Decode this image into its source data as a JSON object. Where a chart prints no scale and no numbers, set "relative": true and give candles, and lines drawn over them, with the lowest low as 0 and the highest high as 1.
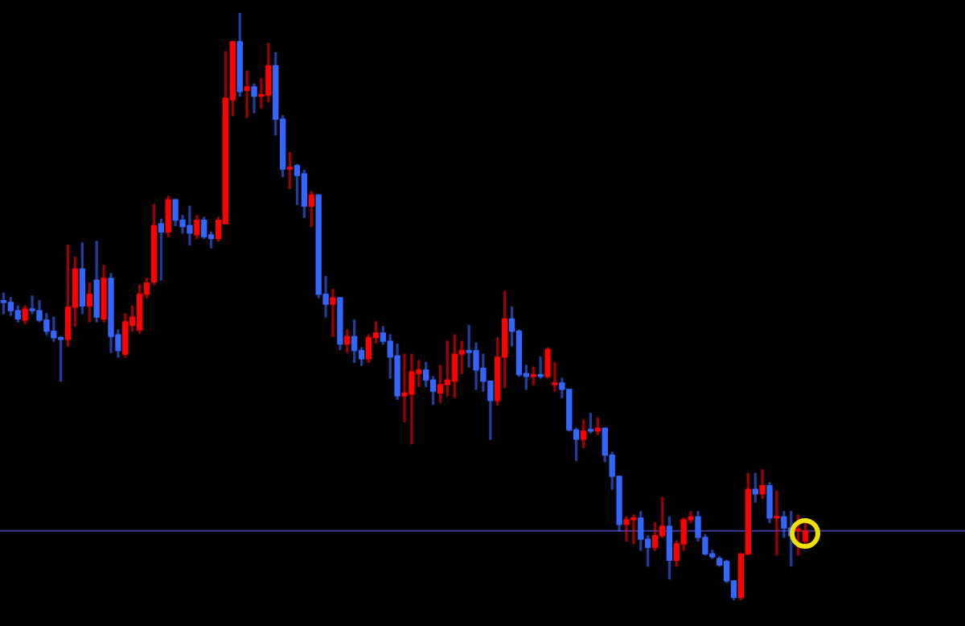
{
  "chart_data": {
    "type": "candlestick",
    "relative": true,
    "categories": [
      null,
      null,
      null,
      null,
      null,
      null,
      null,
      null,
      null,
      null,
      null,
      null,
      null,
      null,
      null,
      null,
      null,
      null,
      null,
      null,
      null,
      null,
      null,
      null,
      null,
      null,
      null,
      null,
      null,
      null,
      null,
      null,
      null,
      null,
      null,
      null,
      null,
      null,
      null,
      null,
      null,
      null,
      null,
      null,
      null,
      null,
      null,
      null,
      null,
      null,
      null,
      null,
      null,
      null,
      null,
      null,
      null,
      null,
      null,
      null,
      null,
      null,
      null,
      null,
      null,
      null,
      null,
      null,
      null,
      null,
      null,
      null,
      null,
      null,
      null,
      null,
      null,
      null,
      null,
      null,
      null,
      null,
      null,
      null,
      null,
      null,
      null,
      null,
      null,
      null,
      null,
      null,
      null,
      null,
      null,
      null,
      null,
      null,
      null,
      null,
      null,
      null,
      null,
      null,
      null,
      null,
      null,
      null,
      null,
      null,
      null,
      null,
      null
    ],
    "ohlc": [
      [
        0.51,
        0.523,
        0.488,
        0.507
      ],
      [
        0.507,
        0.515,
        0.485,
        0.493
      ],
      [
        0.493,
        0.501,
        0.474,
        0.479
      ],
      [
        0.477,
        0.501,
        0.471,
        0.496
      ],
      [
        0.496,
        0.518,
        0.488,
        0.493
      ],
      [
        0.493,
        0.51,
        0.474,
        0.477
      ],
      [
        0.477,
        0.488,
        0.452,
        0.458
      ],
      [
        0.458,
        0.482,
        0.441,
        0.447
      ],
      [
        0.447,
        0.449,
        0.373,
        0.444
      ],
      [
        0.444,
        0.605,
        0.433,
        0.499
      ],
      [
        0.499,
        0.584,
        0.466,
        0.564
      ],
      [
        0.564,
        0.608,
        0.488,
        0.501
      ],
      [
        0.501,
        0.54,
        0.474,
        0.521
      ],
      [
        0.545,
        0.611,
        0.474,
        0.482
      ],
      [
        0.479,
        0.57,
        0.474,
        0.548
      ],
      [
        0.548,
        0.556,
        0.422,
        0.449
      ],
      [
        0.452,
        0.46,
        0.414,
        0.425
      ],
      [
        0.419,
        0.488,
        0.414,
        0.474
      ],
      [
        0.468,
        0.501,
        0.458,
        0.482
      ],
      [
        0.46,
        0.537,
        0.455,
        0.521
      ],
      [
        0.521,
        0.548,
        0.515,
        0.54
      ],
      [
        0.542,
        0.674,
        0.537,
        0.638
      ],
      [
        0.641,
        0.649,
        0.545,
        0.627
      ],
      [
        0.627,
        0.688,
        0.619,
        0.682
      ],
      [
        0.682,
        0.682,
        0.638,
        0.647
      ],
      [
        0.647,
        0.655,
        0.625,
        0.636
      ],
      [
        0.638,
        0.671,
        0.605,
        0.625
      ],
      [
        0.622,
        0.655,
        0.616,
        0.647
      ],
      [
        0.647,
        0.652,
        0.616,
        0.619
      ],
      [
        0.622,
        0.627,
        0.6,
        0.616
      ],
      [
        0.616,
        0.652,
        0.611,
        0.647
      ],
      [
        0.641,
        0.934,
        0.641,
        0.855
      ],
      [
        0.852,
        0.951,
        0.825,
        0.951
      ],
      [
        0.951,
        1,
        0.858,
        0.866
      ],
      [
        0.868,
        0.901,
        0.822,
        0.874
      ],
      [
        0.874,
        0.879,
        0.83,
        0.858
      ],
      [
        0.858,
        0.888,
        0.838,
        0.86
      ],
      [
        0.86,
        0.948,
        0.849,
        0.91
      ],
      [
        0.91,
        0.932,
        0.792,
        0.819
      ],
      [
        0.819,
        0.825,
        0.721,
        0.734
      ],
      [
        0.734,
        0.762,
        0.701,
        0.737
      ],
      [
        0.74,
        0.742,
        0.674,
        0.723
      ],
      [
        0.726,
        0.732,
        0.652,
        0.671
      ],
      [
        0.671,
        0.696,
        0.636,
        0.69
      ],
      [
        0.69,
        0.69,
        0.515,
        0.521
      ],
      [
        0.521,
        0.551,
        0.482,
        0.504
      ],
      [
        0.504,
        0.529,
        0.449,
        0.515
      ],
      [
        0.515,
        0.515,
        0.427,
        0.436
      ],
      [
        0.436,
        0.46,
        0.422,
        0.449
      ],
      [
        0.449,
        0.477,
        0.405,
        0.425
      ],
      [
        0.425,
        0.43,
        0.4,
        0.411
      ],
      [
        0.411,
        0.452,
        0.405,
        0.447
      ],
      [
        0.447,
        0.474,
        0.438,
        0.455
      ],
      [
        0.455,
        0.466,
        0.436,
        0.441
      ],
      [
        0.441,
        0.452,
        0.378,
        0.414
      ],
      [
        0.416,
        0.436,
        0.342,
        0.348
      ],
      [
        0.348,
        0.419,
        0.304,
        0.353
      ],
      [
        0.351,
        0.419,
        0.266,
        0.389
      ],
      [
        0.386,
        0.408,
        0.364,
        0.392
      ],
      [
        0.392,
        0.405,
        0.364,
        0.375
      ],
      [
        0.375,
        0.381,
        0.334,
        0.356
      ],
      [
        0.353,
        0.4,
        0.337,
        0.367
      ],
      [
        0.367,
        0.441,
        0.348,
        0.375
      ],
      [
        0.373,
        0.452,
        0.345,
        0.419
      ],
      [
        0.419,
        0.441,
        0.386,
        0.425
      ],
      [
        0.425,
        0.468,
        0.397,
        0.422
      ],
      [
        0.425,
        0.438,
        0.359,
        0.392
      ],
      [
        0.395,
        0.419,
        0.356,
        0.373
      ],
      [
        0.373,
        0.373,
        0.274,
        0.34
      ],
      [
        0.34,
        0.447,
        0.332,
        0.414
      ],
      [
        0.414,
        0.526,
        0.362,
        0.479
      ],
      [
        0.479,
        0.499,
        0.433,
        0.458
      ],
      [
        0.458,
        0.46,
        0.381,
        0.384
      ],
      [
        0.386,
        0.4,
        0.359,
        0.381
      ],
      [
        0.381,
        0.397,
        0.367,
        0.384
      ],
      [
        0.384,
        0.414,
        0.378,
        0.381
      ],
      [
        0.381,
        0.43,
        0.378,
        0.427
      ],
      [
        0.367,
        0.405,
        0.356,
        0.37
      ],
      [
        0.37,
        0.378,
        0.345,
        0.359
      ],
      [
        0.359,
        0.359,
        0.288,
        0.29
      ],
      [
        0.29,
        0.293,
        0.238,
        0.274
      ],
      [
        0.274,
        0.307,
        0.26,
        0.288
      ],
      [
        0.29,
        0.318,
        0.285,
        0.288
      ],
      [
        0.288,
        0.31,
        0.282,
        0.293
      ],
      [
        0.293,
        0.293,
        0.236,
        0.247
      ],
      [
        0.247,
        0.252,
        0.189,
        0.211
      ],
      [
        0.211,
        0.211,
        0.118,
        0.129
      ],
      [
        0.129,
        0.142,
        0.101,
        0.137
      ],
      [
        0.137,
        0.145,
        0.096,
        0.14
      ],
      [
        0.14,
        0.151,
        0.085,
        0.104
      ],
      [
        0.104,
        0.11,
        0.058,
        0.09
      ],
      [
        0.09,
        0.132,
        0.085,
        0.11
      ],
      [
        0.11,
        0.175,
        0.107,
        0.126
      ],
      [
        0.126,
        0.142,
        0.036,
        0.068
      ],
      [
        0.068,
        0.101,
        0.058,
        0.096
      ],
      [
        0.096,
        0.14,
        0.085,
        0.137
      ],
      [
        0.137,
        0.151,
        0.132,
        0.142
      ],
      [
        0.142,
        0.151,
        0.101,
        0.107
      ],
      [
        0.107,
        0.112,
        0.077,
        0.079
      ],
      [
        0.079,
        0.085,
        0.071,
        0.074
      ],
      [
        0.071,
        0.074,
        0.058,
        0.06
      ],
      [
        0.066,
        0.068,
        0.03,
        0.033
      ],
      [
        0.033,
        0.033,
        0,
        0.005
      ],
      [
        0.005,
        0.079,
        0,
        0.079
      ],
      [
        0.079,
        0.216,
        0.077,
        0.189
      ],
      [
        0.189,
        0.216,
        0.167,
        0.181
      ],
      [
        0.181,
        0.222,
        0.173,
        0.195
      ],
      [
        0.195,
        0.2,
        0.132,
        0.14
      ],
      [
        0.14,
        0.186,
        0.077,
        0.142
      ],
      [
        0.142,
        0.151,
        0.107,
        0.123
      ],
      [
        0.123,
        0.151,
        0.058,
        0.11
      ],
      [
        0.118,
        0.145,
        0.077,
        0.121
      ],
      [
        0.101,
        0.132,
        0.096,
        0.118
      ]
    ],
    "colors": [
      "#3366ff",
      "#3366ff",
      "#3366ff",
      "#ff0000",
      "#3366ff",
      "#3366ff",
      "#3366ff",
      "#3366ff",
      "#3366ff",
      "#ff0000",
      "#ff0000",
      "#3366ff",
      "#ff0000",
      "#3366ff",
      "#ff0000",
      "#3366ff",
      "#3366ff",
      "#ff0000",
      "#ff0000",
      "#ff0000",
      "#ff0000",
      "#ff0000",
      "#3366ff",
      "#ff0000",
      "#3366ff",
      "#3366ff",
      "#3366ff",
      "#ff0000",
      "#3366ff",
      "#3366ff",
      "#ff0000",
      "#ff0000",
      "#ff0000",
      "#3366ff",
      "#ff0000",
      "#3366ff",
      "#ff0000",
      "#ff0000",
      "#3366ff",
      "#3366ff",
      "#ff0000",
      "#3366ff",
      "#3366ff",
      "#ff0000",
      "#3366ff",
      "#3366ff",
      "#ff0000",
      "#3366ff",
      "#ff0000",
      "#3366ff",
      "#3366ff",
      "#ff0000",
      "#ff0000",
      "#3366ff",
      "#3366ff",
      "#3366ff",
      "#ff0000",
      "#ff0000",
      "#ff0000",
      "#3366ff",
      "#3366ff",
      "#ff0000",
      "#ff0000",
      "#ff0000",
      "#ff0000",
      "#3366ff",
      "#3366ff",
      "#3366ff",
      "#3366ff",
      "#ff0000",
      "#ff0000",
      "#3366ff",
      "#3366ff",
      "#3366ff",
      "#ff0000",
      "#3366ff",
      "#ff0000",
      "#ff0000",
      "#3366ff",
      "#3366ff",
      "#3366ff",
      "#ff0000",
      "#3366ff",
      "#ff0000",
      "#3366ff",
      "#3366ff",
      "#3366ff",
      "#ff0000",
      "#ff0000",
      "#3366ff",
      "#3366ff",
      "#ff0000",
      "#ff0000",
      "#3366ff",
      "#ff0000",
      "#ff0000",
      "#ff0000",
      "#3366ff",
      "#3366ff",
      "#3366ff",
      "#3366ff",
      "#3366ff",
      "#3366ff",
      "#ff0000",
      "#ff0000",
      "#3366ff",
      "#ff0000",
      "#3366ff",
      "#ff0000",
      "#3366ff",
      "#3366ff",
      "#ff0000",
      "#ff0000"
    ],
    "ref_lines": [
      {
        "axis": "y",
        "value": 0.118,
        "color": "#3a3a9a"
      }
    ]
  }
}
